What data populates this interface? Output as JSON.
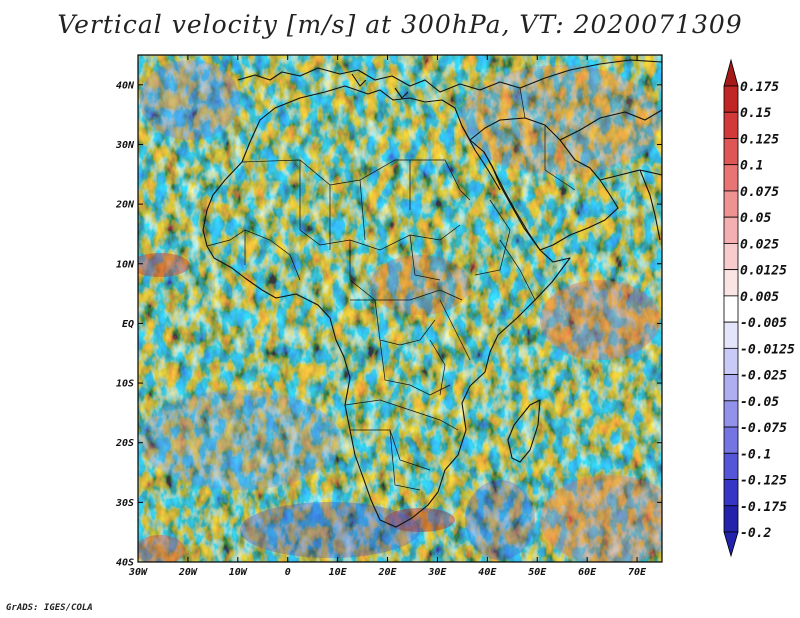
{
  "title": "Vertical velocity [m/s] at 300hPa, VT: 2020071309",
  "credit": "GrADS: IGES/COLA",
  "map": {
    "lon_range": [
      -30,
      75
    ],
    "lat_range": [
      -40,
      45
    ],
    "lat_ticks": [
      {
        "label": "40N",
        "lat": 40
      },
      {
        "label": "30N",
        "lat": 30
      },
      {
        "label": "20N",
        "lat": 20
      },
      {
        "label": "10N",
        "lat": 10
      },
      {
        "label": "EQ",
        "lat": 0
      },
      {
        "label": "10S",
        "lat": -10
      },
      {
        "label": "20S",
        "lat": -20
      },
      {
        "label": "30S",
        "lat": -30
      },
      {
        "label": "40S",
        "lat": -40
      }
    ],
    "lon_ticks": [
      {
        "label": "30W",
        "lon": -30
      },
      {
        "label": "20W",
        "lon": -20
      },
      {
        "label": "10W",
        "lon": -10
      },
      {
        "label": "0",
        "lon": 0
      },
      {
        "label": "10E",
        "lon": 10
      },
      {
        "label": "20E",
        "lon": 20
      },
      {
        "label": "30E",
        "lon": 30
      },
      {
        "label": "40E",
        "lon": 40
      },
      {
        "label": "50E",
        "lon": 50
      },
      {
        "label": "60E",
        "lon": 60
      },
      {
        "label": "70E",
        "lon": 70
      }
    ]
  },
  "colorbar": {
    "levels": [
      {
        "label": "0.175",
        "color": "#a51919"
      },
      {
        "label": "0.15",
        "color": "#c02626"
      },
      {
        "label": "0.125",
        "color": "#d23a3a"
      },
      {
        "label": "0.1",
        "color": "#de5656"
      },
      {
        "label": "0.075",
        "color": "#e87474"
      },
      {
        "label": "0.05",
        "color": "#ee9292"
      },
      {
        "label": "0.025",
        "color": "#f4b0b0"
      },
      {
        "label": "0.0125",
        "color": "#f8cccc"
      },
      {
        "label": "0.005",
        "color": "#fbe4e4"
      },
      {
        "label": "-0.005",
        "color": "#ffffff"
      },
      {
        "label": "-0.0125",
        "color": "#e4e4fb"
      },
      {
        "label": "-0.025",
        "color": "#cacaf6"
      },
      {
        "label": "-0.05",
        "color": "#aeaef0"
      },
      {
        "label": "-0.075",
        "color": "#9292ea"
      },
      {
        "label": "-0.1",
        "color": "#7474e2"
      },
      {
        "label": "-0.125",
        "color": "#5555d8"
      },
      {
        "label": "-0.175",
        "color": "#3535c6"
      },
      {
        "label": "-0.2",
        "color": "#2222aa"
      }
    ],
    "top_color": "#a51919",
    "bottom_color": "#2222aa"
  }
}
